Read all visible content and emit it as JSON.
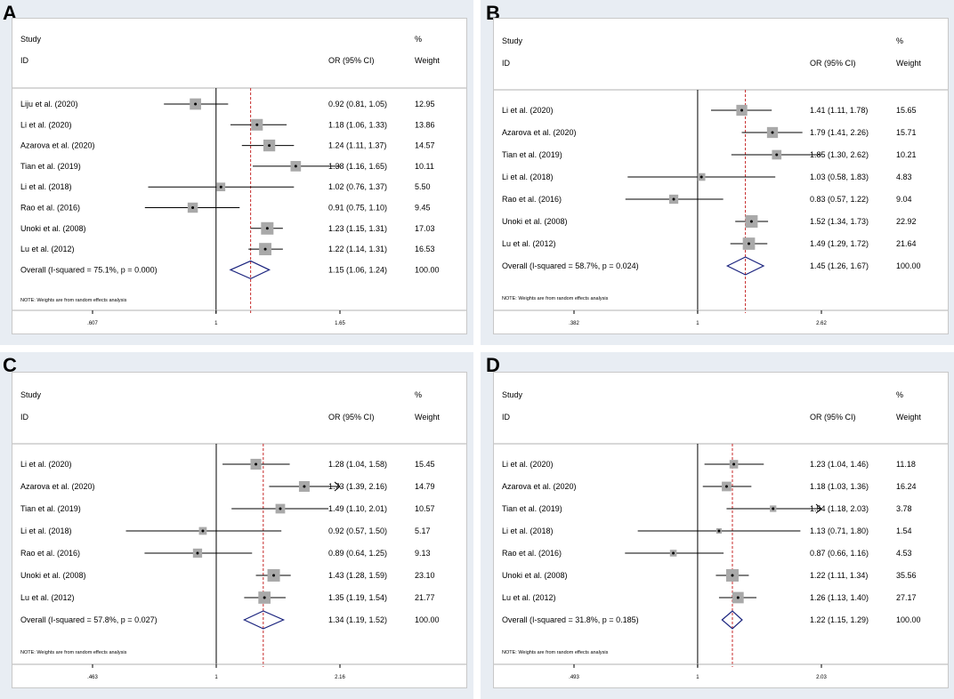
{
  "chart_data": [
    {
      "panel": "A",
      "type": "forest",
      "header": {
        "study": "Study",
        "id": "ID",
        "or": "OR (95% CI)",
        "pct": "%",
        "weight": "Weight"
      },
      "note": "NOTE: Weights are from random effects analysis",
      "xscale": "log",
      "null_value": 1,
      "overall_value": 1.15,
      "xticks": [
        {
          "value": 0.607,
          "label": ".607"
        },
        {
          "value": 1,
          "label": "1"
        },
        {
          "value": 1.65,
          "label": "1.65"
        }
      ],
      "studies": [
        {
          "name": "Liju et al. (2020)",
          "or": 0.92,
          "lo": 0.81,
          "hi": 1.05,
          "or_text": "0.92 (0.81, 1.05)",
          "weight": "12.95",
          "w": 12.95
        },
        {
          "name": "Li et al. (2020)",
          "or": 1.18,
          "lo": 1.06,
          "hi": 1.33,
          "or_text": "1.18 (1.06, 1.33)",
          "weight": "13.86",
          "w": 13.86
        },
        {
          "name": "Azarova et al. (2020)",
          "or": 1.24,
          "lo": 1.11,
          "hi": 1.37,
          "or_text": "1.24 (1.11, 1.37)",
          "weight": "14.57",
          "w": 14.57
        },
        {
          "name": "Tian et al. (2019)",
          "or": 1.38,
          "lo": 1.16,
          "hi": 1.65,
          "or_text": "1.38 (1.16, 1.65)",
          "weight": "10.11",
          "w": 10.11
        },
        {
          "name": "Li et al. (2018)",
          "or": 1.02,
          "lo": 0.76,
          "hi": 1.37,
          "or_text": "1.02 (0.76, 1.37)",
          "weight": "5.50",
          "w": 5.5
        },
        {
          "name": "Rao et al. (2016)",
          "or": 0.91,
          "lo": 0.75,
          "hi": 1.1,
          "or_text": "0.91 (0.75, 1.10)",
          "weight": "9.45",
          "w": 9.45
        },
        {
          "name": "Unoki et al. (2008)",
          "or": 1.23,
          "lo": 1.15,
          "hi": 1.31,
          "or_text": "1.23 (1.15, 1.31)",
          "weight": "17.03",
          "w": 17.03
        },
        {
          "name": "Lu et al. (2012)",
          "or": 1.22,
          "lo": 1.14,
          "hi": 1.31,
          "or_text": "1.22 (1.14, 1.31)",
          "weight": "16.53",
          "w": 16.53
        }
      ],
      "overall": {
        "label": "Overall  (I-squared = 75.1%, p = 0.000)",
        "or": 1.15,
        "lo": 1.06,
        "hi": 1.24,
        "or_text": "1.15 (1.06, 1.24)",
        "weight": "100.00"
      }
    },
    {
      "panel": "B",
      "type": "forest",
      "header": {
        "study": "Study",
        "id": "ID",
        "or": "OR (95% CI)",
        "pct": "%",
        "weight": "Weight"
      },
      "note": "NOTE: Weights are from random effects analysis",
      "xscale": "log",
      "null_value": 1,
      "overall_value": 1.45,
      "xticks": [
        {
          "value": 0.382,
          "label": ".382"
        },
        {
          "value": 1,
          "label": "1"
        },
        {
          "value": 2.62,
          "label": "2.62"
        }
      ],
      "studies": [
        {
          "name": "Li et al. (2020)",
          "or": 1.41,
          "lo": 1.11,
          "hi": 1.78,
          "or_text": "1.41 (1.11, 1.78)",
          "weight": "15.65",
          "w": 15.65
        },
        {
          "name": "Azarova et al. (2020)",
          "or": 1.79,
          "lo": 1.41,
          "hi": 2.26,
          "or_text": "1.79 (1.41, 2.26)",
          "weight": "15.71",
          "w": 15.71
        },
        {
          "name": "Tian et al. (2019)",
          "or": 1.85,
          "lo": 1.3,
          "hi": 2.62,
          "or_text": "1.85 (1.30, 2.62)",
          "weight": "10.21",
          "w": 10.21
        },
        {
          "name": "Li et al. (2018)",
          "or": 1.03,
          "lo": 0.58,
          "hi": 1.83,
          "or_text": "1.03 (0.58, 1.83)",
          "weight": "4.83",
          "w": 4.83
        },
        {
          "name": "Rao et al. (2016)",
          "or": 0.83,
          "lo": 0.57,
          "hi": 1.22,
          "or_text": "0.83 (0.57, 1.22)",
          "weight": "9.04",
          "w": 9.04
        },
        {
          "name": "Unoki et al. (2008)",
          "or": 1.52,
          "lo": 1.34,
          "hi": 1.73,
          "or_text": "1.52 (1.34, 1.73)",
          "weight": "22.92",
          "w": 22.92
        },
        {
          "name": "Lu et al. (2012)",
          "or": 1.49,
          "lo": 1.29,
          "hi": 1.72,
          "or_text": "1.49 (1.29, 1.72)",
          "weight": "21.64",
          "w": 21.64
        }
      ],
      "overall": {
        "label": "Overall  (I-squared = 58.7%, p = 0.024)",
        "or": 1.45,
        "lo": 1.26,
        "hi": 1.67,
        "or_text": "1.45 (1.26, 1.67)",
        "weight": "100.00"
      }
    },
    {
      "panel": "C",
      "type": "forest",
      "header": {
        "study": "Study",
        "id": "ID",
        "or": "OR (95% CI)",
        "pct": "%",
        "weight": "Weight"
      },
      "note": "NOTE: Weights are from random effects analysis",
      "xscale": "log",
      "null_value": 1,
      "overall_value": 1.34,
      "xticks": [
        {
          "value": 0.463,
          "label": ".463"
        },
        {
          "value": 1,
          "label": "1"
        },
        {
          "value": 2.16,
          "label": "2.16"
        }
      ],
      "studies": [
        {
          "name": "Li et al. (2020)",
          "or": 1.28,
          "lo": 1.04,
          "hi": 1.58,
          "or_text": "1.28 (1.04, 1.58)",
          "weight": "15.45",
          "w": 15.45
        },
        {
          "name": "Azarova et al. (2020)",
          "or": 1.73,
          "lo": 1.39,
          "hi": 2.16,
          "or_text": "1.73 (1.39, 2.16)",
          "weight": "14.79",
          "w": 14.79,
          "arrow": true
        },
        {
          "name": "Tian et al. (2019)",
          "or": 1.49,
          "lo": 1.1,
          "hi": 2.01,
          "or_text": "1.49 (1.10, 2.01)",
          "weight": "10.57",
          "w": 10.57
        },
        {
          "name": "Li et al. (2018)",
          "or": 0.92,
          "lo": 0.57,
          "hi": 1.5,
          "or_text": "0.92 (0.57, 1.50)",
          "weight": "5.17",
          "w": 5.17
        },
        {
          "name": "Rao et al. (2016)",
          "or": 0.89,
          "lo": 0.64,
          "hi": 1.25,
          "or_text": "0.89 (0.64, 1.25)",
          "weight": "9.13",
          "w": 9.13
        },
        {
          "name": "Unoki et al. (2008)",
          "or": 1.43,
          "lo": 1.28,
          "hi": 1.59,
          "or_text": "1.43 (1.28, 1.59)",
          "weight": "23.10",
          "w": 23.1
        },
        {
          "name": "Lu et al. (2012)",
          "or": 1.35,
          "lo": 1.19,
          "hi": 1.54,
          "or_text": "1.35 (1.19, 1.54)",
          "weight": "21.77",
          "w": 21.77
        }
      ],
      "overall": {
        "label": "Overall  (I-squared = 57.8%, p = 0.027)",
        "or": 1.34,
        "lo": 1.19,
        "hi": 1.52,
        "or_text": "1.34 (1.19, 1.52)",
        "weight": "100.00"
      }
    },
    {
      "panel": "D",
      "type": "forest",
      "header": {
        "study": "Study",
        "id": "ID",
        "or": "OR (95% CI)",
        "pct": "%",
        "weight": "Weight"
      },
      "note": "NOTE: Weights are from random effects analysis",
      "xscale": "log",
      "null_value": 1,
      "overall_value": 1.22,
      "xticks": [
        {
          "value": 0.493,
          "label": ".493"
        },
        {
          "value": 1,
          "label": "1"
        },
        {
          "value": 2.03,
          "label": "2.03"
        }
      ],
      "studies": [
        {
          "name": "Li et al. (2020)",
          "or": 1.23,
          "lo": 1.04,
          "hi": 1.46,
          "or_text": "1.23 (1.04, 1.46)",
          "weight": "11.18",
          "w": 11.18
        },
        {
          "name": "Azarova et al. (2020)",
          "or": 1.18,
          "lo": 1.03,
          "hi": 1.36,
          "or_text": "1.18 (1.03, 1.36)",
          "weight": "16.24",
          "w": 16.24
        },
        {
          "name": "Tian et al. (2019)",
          "or": 1.54,
          "lo": 1.18,
          "hi": 2.03,
          "or_text": "1.54 (1.18, 2.03)",
          "weight": "3.78",
          "w": 3.78,
          "arrow": true
        },
        {
          "name": "Li et al. (2018)",
          "or": 1.13,
          "lo": 0.71,
          "hi": 1.8,
          "or_text": "1.13 (0.71, 1.80)",
          "weight": "1.54",
          "w": 1.54
        },
        {
          "name": "Rao et al. (2016)",
          "or": 0.87,
          "lo": 0.66,
          "hi": 1.16,
          "or_text": "0.87 (0.66, 1.16)",
          "weight": "4.53",
          "w": 4.53
        },
        {
          "name": "Unoki et al. (2008)",
          "or": 1.22,
          "lo": 1.11,
          "hi": 1.34,
          "or_text": "1.22 (1.11, 1.34)",
          "weight": "35.56",
          "w": 35.56
        },
        {
          "name": "Lu et al. (2012)",
          "or": 1.26,
          "lo": 1.13,
          "hi": 1.4,
          "or_text": "1.26 (1.13, 1.40)",
          "weight": "27.17",
          "w": 27.17
        }
      ],
      "overall": {
        "label": "Overall  (I-squared = 31.8%, p = 0.185)",
        "or": 1.22,
        "lo": 1.15,
        "hi": 1.29,
        "or_text": "1.22 (1.15, 1.29)",
        "weight": "100.00"
      }
    }
  ],
  "colors": {
    "frame": "#e8edf3",
    "diamond": "#1a237e",
    "ref_line": "#c62828",
    "box": "#a9a9a9",
    "line": "#000000"
  }
}
